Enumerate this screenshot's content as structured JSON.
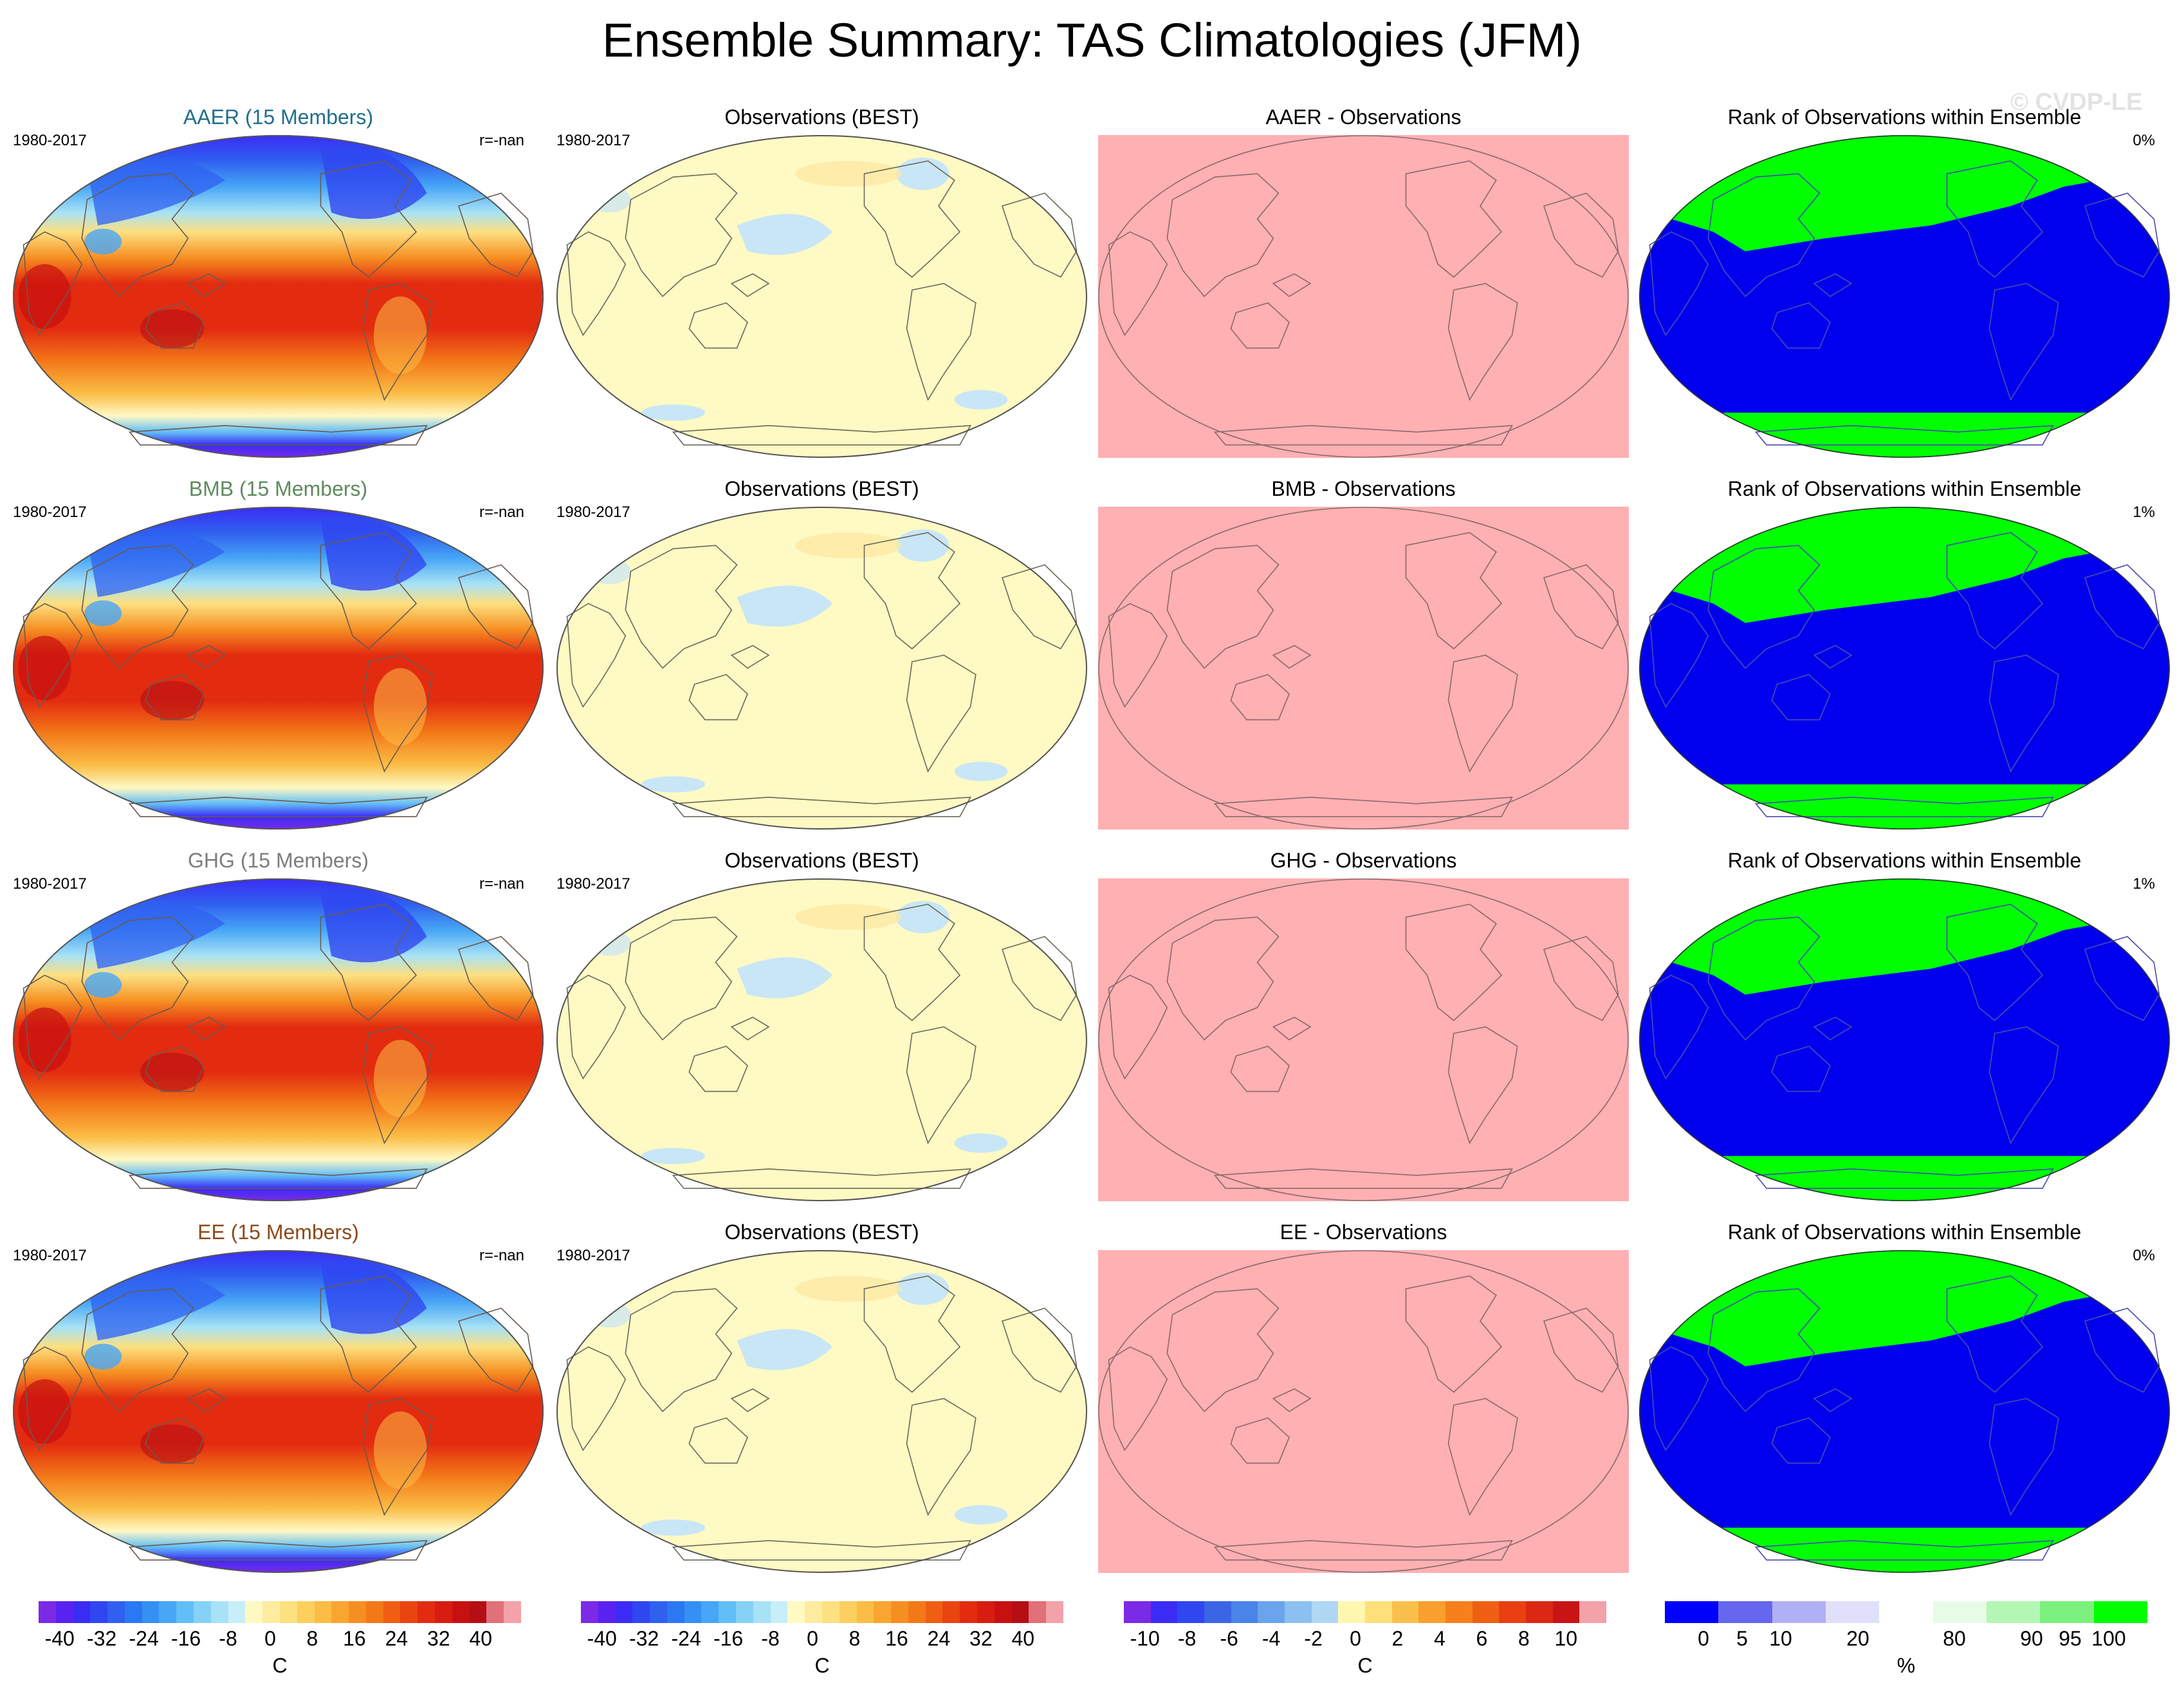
{
  "title": "Ensemble Summary: TAS Climatologies (JFM)",
  "watermark": "© CVDP-LE",
  "period": "1980-2017",
  "rows": [
    {
      "model_title": "AAER (15 Members)",
      "title_color": "#1f6f8b",
      "corr": "r=-nan",
      "obs_title": "Observations (BEST)",
      "diff_title": "AAER - Observations",
      "rank_title": "Rank of Observations within Ensemble",
      "rank_pct": "0%"
    },
    {
      "model_title": "BMB (15 Members)",
      "title_color": "#5f8a5f",
      "corr": "r=-nan",
      "obs_title": "Observations (BEST)",
      "diff_title": "BMB - Observations",
      "rank_title": "Rank of Observations within Ensemble",
      "rank_pct": "1%"
    },
    {
      "model_title": "GHG (15 Members)",
      "title_color": "#7d7d7d",
      "corr": "r=-nan",
      "obs_title": "Observations (BEST)",
      "diff_title": "GHG - Observations",
      "rank_title": "Rank of Observations within Ensemble",
      "rank_pct": "1%"
    },
    {
      "model_title": "EE (15 Members)",
      "title_color": "#8b4a1a",
      "corr": "r=-nan",
      "obs_title": "Observations (BEST)",
      "diff_title": "EE - Observations",
      "rank_title": "Rank of Observations within Ensemble",
      "rank_pct": "0%"
    }
  ],
  "colorbars": [
    {
      "ticks": [
        "-40",
        "-32",
        "-24",
        "-16",
        "-8",
        "0",
        "8",
        "16",
        "24",
        "32",
        "40"
      ],
      "unit": "C",
      "colors": [
        "#7b2ae6",
        "#5a22f0",
        "#3b2cf5",
        "#3046f0",
        "#2f60f0",
        "#2a78f2",
        "#3590f4",
        "#47a6f6",
        "#62bef6",
        "#85d2f6",
        "#a8e2f6",
        "#c8eefa",
        "#fff9c4",
        "#fdeca0",
        "#fde080",
        "#fccf5e",
        "#fbbd45",
        "#f9a631",
        "#f68f22",
        "#f37818",
        "#ef5e12",
        "#ea4410",
        "#e32b10",
        "#d81c10",
        "#c81010",
        "#b50e14",
        "#e0707a",
        "#f2a2a8"
      ]
    },
    {
      "ticks": [
        "-40",
        "-32",
        "-24",
        "-16",
        "-8",
        "0",
        "8",
        "16",
        "24",
        "32",
        "40"
      ],
      "unit": "C",
      "colors": [
        "#7b2ae6",
        "#5a22f0",
        "#3b2cf5",
        "#3046f0",
        "#2f60f0",
        "#2a78f2",
        "#3590f4",
        "#47a6f6",
        "#62bef6",
        "#85d2f6",
        "#a8e2f6",
        "#c8eefa",
        "#fff9c4",
        "#fdeca0",
        "#fde080",
        "#fccf5e",
        "#fbbd45",
        "#f9a631",
        "#f68f22",
        "#f37818",
        "#ef5e12",
        "#ea4410",
        "#e32b10",
        "#d81c10",
        "#c81010",
        "#b50e14",
        "#e0707a",
        "#f2a2a8"
      ]
    },
    {
      "ticks": [
        "-10",
        "-8",
        "-6",
        "-4",
        "-2",
        "0",
        "2",
        "4",
        "6",
        "8",
        "10"
      ],
      "unit": "C",
      "colors": [
        "#7b2ae6",
        "#3b2cf5",
        "#3046f0",
        "#3a66e6",
        "#4a84e8",
        "#6aa4ec",
        "#8cc0f0",
        "#b0d8f4",
        "#fff7b0",
        "#fde07a",
        "#fbc04c",
        "#f9a02e",
        "#f6801c",
        "#f06014",
        "#e84012",
        "#dc2812",
        "#c81414",
        "#f2a2a8"
      ]
    },
    {
      "ticks": [
        "0",
        "5",
        "10",
        "20",
        "80",
        "90",
        "95",
        "100"
      ],
      "unit": "%",
      "colors": [
        "#0000ff",
        "#6666ee",
        "#b0b0f4",
        "#e0e0fa",
        "#ffffff",
        "#e6fce6",
        "#b4f7b4",
        "#7cf07c",
        "#00ff00"
      ]
    }
  ]
}
